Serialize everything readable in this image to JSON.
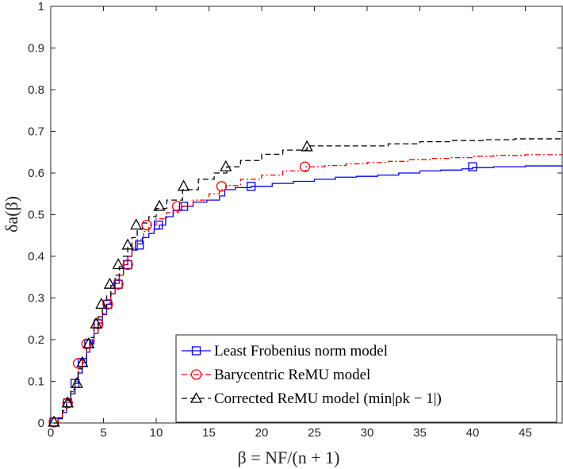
{
  "chart_data": {
    "type": "line",
    "title": "",
    "xlabel": "β = NF/(n + 1)",
    "ylabel": "δa(β)",
    "xlim": [
      0,
      48.5
    ],
    "ylim": [
      0,
      1
    ],
    "x_ticks": [
      0,
      5,
      10,
      15,
      20,
      25,
      30,
      35,
      40,
      45
    ],
    "y_ticks": [
      0,
      0.1,
      0.2,
      0.3,
      0.4,
      0.5,
      0.6,
      0.7,
      0.8,
      0.9,
      1
    ],
    "x_tick_labels": [
      "0",
      "5",
      "10",
      "15",
      "20",
      "25",
      "30",
      "35",
      "40",
      "45"
    ],
    "y_tick_labels": [
      "0",
      "0.1",
      "0.2",
      "0.3",
      "0.4",
      "0.5",
      "0.6",
      "0.7",
      "0.8",
      "0.9",
      "1"
    ],
    "legend_position": "bottom-right",
    "series": [
      {
        "name": "Least Frobenius norm model",
        "color": "#0000ff",
        "dash": "solid",
        "marker": "square",
        "x": [
          0.3,
          0.7,
          1.1,
          1.5,
          1.9,
          2.3,
          2.6,
          3.0,
          3.4,
          3.7,
          4.1,
          4.5,
          4.9,
          5.3,
          5.7,
          6.1,
          6.5,
          6.9,
          7.3,
          7.7,
          8.2,
          8.7,
          9.3,
          9.8,
          10.3,
          10.9,
          11.6,
          12.4,
          13.5,
          14.8,
          16.0,
          16.5,
          17.5,
          19.0,
          21.0,
          23.0,
          25.0,
          27.0,
          29.0,
          31.0,
          33.0,
          35.0,
          37.0,
          39.0,
          40.0,
          42.0,
          45.0,
          48.5
        ],
        "values": [
          0.0,
          0.01,
          0.025,
          0.05,
          0.07,
          0.095,
          0.12,
          0.145,
          0.17,
          0.19,
          0.215,
          0.24,
          0.26,
          0.285,
          0.31,
          0.335,
          0.355,
          0.38,
          0.4,
          0.415,
          0.43,
          0.445,
          0.455,
          0.465,
          0.475,
          0.495,
          0.51,
          0.52,
          0.53,
          0.535,
          0.545,
          0.56,
          0.565,
          0.568,
          0.575,
          0.58,
          0.585,
          0.59,
          0.592,
          0.595,
          0.6,
          0.605,
          0.607,
          0.61,
          0.613,
          0.615,
          0.617,
          0.618
        ],
        "markers_x": [
          0.3,
          1.6,
          2.3,
          3.0,
          3.6,
          4.5,
          5.4,
          6.4,
          7.3,
          8.4,
          10.2,
          12.6,
          19.0,
          40.0
        ],
        "markers_y": [
          0.002,
          0.048,
          0.095,
          0.145,
          0.19,
          0.238,
          0.285,
          0.333,
          0.38,
          0.427,
          0.475,
          0.52,
          0.568,
          0.615
        ]
      },
      {
        "name": "Barycentric ReMU model",
        "color": "#ff0000",
        "dash": "dashdot",
        "marker": "circle",
        "x": [
          0.3,
          0.7,
          1.1,
          1.5,
          1.9,
          2.3,
          2.6,
          3.0,
          3.4,
          3.7,
          4.1,
          4.5,
          4.9,
          5.3,
          5.7,
          6.1,
          6.5,
          6.9,
          7.3,
          7.7,
          8.2,
          8.8,
          9.3,
          10.0,
          11.0,
          12.1,
          13.5,
          15.0,
          16.0,
          16.6,
          18.0,
          20.0,
          22.0,
          24.2,
          26.0,
          28.0,
          30.0,
          32.0,
          34.0,
          36.0,
          38.0,
          40.0,
          42.0,
          45.0,
          48.5
        ],
        "values": [
          0.0,
          0.012,
          0.028,
          0.05,
          0.075,
          0.1,
          0.125,
          0.15,
          0.172,
          0.195,
          0.215,
          0.24,
          0.262,
          0.288,
          0.31,
          0.335,
          0.355,
          0.38,
          0.4,
          0.42,
          0.44,
          0.46,
          0.475,
          0.49,
          0.505,
          0.52,
          0.535,
          0.55,
          0.56,
          0.57,
          0.585,
          0.595,
          0.605,
          0.615,
          0.618,
          0.622,
          0.625,
          0.628,
          0.632,
          0.635,
          0.637,
          0.64,
          0.642,
          0.644,
          0.645
        ],
        "markers_x": [
          0.3,
          1.6,
          2.6,
          3.4,
          4.5,
          5.4,
          6.4,
          7.3,
          9.1,
          12.0,
          16.2,
          24.1
        ],
        "markers_y": [
          0.002,
          0.048,
          0.143,
          0.19,
          0.238,
          0.285,
          0.333,
          0.38,
          0.475,
          0.52,
          0.568,
          0.615
        ]
      },
      {
        "name": "Corrected ReMU model (min|ρk − 1|)",
        "color": "#000000",
        "dash": "dashed",
        "marker": "triangle",
        "x": [
          0.3,
          0.7,
          1.1,
          1.5,
          1.9,
          2.3,
          2.6,
          3.0,
          3.4,
          3.7,
          4.1,
          4.5,
          4.9,
          5.3,
          5.7,
          6.1,
          6.5,
          6.9,
          7.3,
          7.7,
          8.2,
          8.7,
          9.3,
          10.0,
          11.0,
          12.5,
          14.0,
          15.5,
          16.7,
          18.0,
          20.0,
          22.0,
          24.3,
          26.0,
          28.0,
          30.0,
          32.0,
          35.0,
          38.0,
          41.0,
          44.0,
          48.5
        ],
        "values": [
          0.0,
          0.012,
          0.03,
          0.055,
          0.08,
          0.105,
          0.13,
          0.155,
          0.18,
          0.205,
          0.23,
          0.255,
          0.28,
          0.305,
          0.33,
          0.355,
          0.375,
          0.4,
          0.425,
          0.445,
          0.465,
          0.48,
          0.495,
          0.515,
          0.535,
          0.56,
          0.585,
          0.6,
          0.615,
          0.63,
          0.645,
          0.655,
          0.665,
          0.665,
          0.665,
          0.665,
          0.67,
          0.675,
          0.678,
          0.68,
          0.682,
          0.683
        ],
        "markers_x": [
          0.3,
          1.6,
          2.5,
          3.0,
          3.6,
          4.3,
          4.8,
          5.6,
          6.4,
          7.3,
          8.1,
          10.3,
          12.6,
          16.6,
          24.3
        ],
        "markers_y": [
          0.002,
          0.048,
          0.095,
          0.145,
          0.19,
          0.238,
          0.285,
          0.333,
          0.38,
          0.427,
          0.475,
          0.52,
          0.568,
          0.615,
          0.663
        ]
      }
    ]
  }
}
